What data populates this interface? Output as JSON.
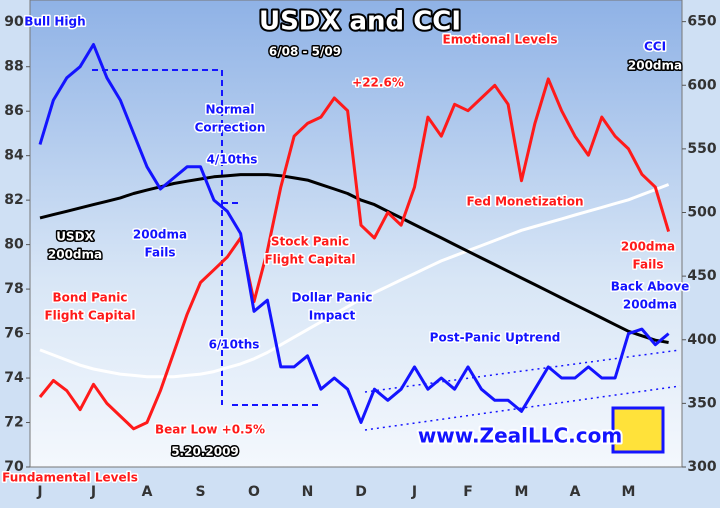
{
  "chart_data": {
    "type": "line",
    "title": "USDX and CCI",
    "subtitle": "6/08 - 5/09",
    "categories": [
      "J",
      null,
      null,
      null,
      "J",
      null,
      null,
      null,
      "A",
      null,
      null,
      null,
      "S",
      null,
      null,
      null,
      "O",
      null,
      null,
      null,
      "N",
      null,
      null,
      null,
      "D",
      null,
      null,
      null,
      "J",
      null,
      null,
      null,
      "F",
      null,
      null,
      null,
      "M",
      null,
      null,
      null,
      "A",
      null,
      null,
      null,
      "M",
      null,
      null,
      null
    ],
    "ylim": [
      70,
      91
    ],
    "yticks": [
      70,
      72,
      74,
      76,
      78,
      80,
      82,
      84,
      86,
      88,
      90
    ],
    "y2lim": [
      300,
      667
    ],
    "y2ticks": [
      300,
      350,
      400,
      450,
      500,
      550,
      600,
      650
    ],
    "series": [
      {
        "name": "USDX",
        "color": "#1414ff",
        "values": [
          84.5,
          86.5,
          87.5,
          88,
          89,
          87.5,
          86.5,
          85,
          83.5,
          82.5,
          83,
          83.5,
          83.5,
          82,
          81.5,
          80.5,
          77,
          77.5,
          74.5,
          74.5,
          75,
          73.5,
          74,
          73.5,
          72,
          73.5,
          73,
          73.5,
          74.5,
          73.5,
          74,
          73.5,
          74.5,
          73.5,
          73,
          73,
          72.5,
          73.5,
          74.5,
          74,
          74,
          74.5,
          74,
          74,
          76,
          76.2,
          75.5,
          76
        ]
      },
      {
        "name": "CCI",
        "color": "#ff1a1a",
        "axis": "y2",
        "values": [
          355,
          368,
          360,
          345,
          365,
          350,
          340,
          330,
          335,
          360,
          390,
          420,
          445,
          455,
          465,
          480,
          430,
          470,
          520,
          560,
          570,
          575,
          590,
          580,
          490,
          480,
          500,
          490,
          520,
          575,
          560,
          585,
          580,
          590,
          600,
          585,
          525,
          570,
          605,
          580,
          560,
          545,
          575,
          560,
          550,
          530,
          520,
          485
        ]
      },
      {
        "name": "USDX 200dma",
        "color": "#000000",
        "values": [
          81.2,
          81.35,
          81.5,
          81.65,
          81.8,
          81.95,
          82.1,
          82.3,
          82.45,
          82.6,
          82.75,
          82.85,
          82.95,
          83.05,
          83.1,
          83.15,
          83.15,
          83.15,
          83.1,
          83.0,
          82.9,
          82.7,
          82.5,
          82.3,
          82.0,
          81.8,
          81.5,
          81.2,
          80.9,
          80.6,
          80.3,
          80.0,
          79.7,
          79.4,
          79.1,
          78.8,
          78.5,
          78.2,
          77.9,
          77.6,
          77.3,
          77.0,
          76.7,
          76.4,
          76.1,
          75.9,
          75.7,
          75.6
        ]
      },
      {
        "name": "CCI 200dma",
        "color": "#ffffff",
        "axis": "y2",
        "values": [
          392,
          388,
          384,
          380,
          377,
          375,
          373,
          372,
          371,
          371,
          371,
          372,
          373,
          375,
          378,
          381,
          385,
          390,
          396,
          402,
          408,
          414,
          420,
          426,
          432,
          437,
          442,
          447,
          452,
          457,
          462,
          466,
          470,
          474,
          478,
          482,
          486,
          489,
          492,
          495,
          498,
          501,
          504,
          507,
          510,
          514,
          518,
          522
        ]
      }
    ],
    "annotations": [
      {
        "text": [
          "Bull High"
        ],
        "color": "#1414ff"
      },
      {
        "text": [
          "Normal",
          "Correction"
        ],
        "color": "#1414ff"
      },
      {
        "text": [
          "4/10ths"
        ],
        "color": "#1414ff"
      },
      {
        "text": [
          "200dma",
          "Fails"
        ],
        "color": "#1414ff"
      },
      {
        "text": [
          "USDX",
          "200dma"
        ],
        "color": "#ffffff"
      },
      {
        "text": [
          "Bond Panic",
          "Flight Capital"
        ],
        "color": "#ff1a1a"
      },
      {
        "text": [
          "Fundamental Levels"
        ],
        "color": "#ff1a1a"
      },
      {
        "text": [
          "Bear Low +0.5%"
        ],
        "color": "#ff1a1a"
      },
      {
        "text": [
          "5.20.2009"
        ],
        "color": "#ffffff"
      },
      {
        "text": [
          "6/10ths"
        ],
        "color": "#1414ff"
      },
      {
        "text": [
          "Dollar Panic",
          "Impact"
        ],
        "color": "#1414ff"
      },
      {
        "text": [
          "Stock Panic",
          "Flight Capital"
        ],
        "color": "#ff1a1a"
      },
      {
        "text": [
          "+22.6%"
        ],
        "color": "#ff1a1a"
      },
      {
        "text": [
          "Emotional Levels"
        ],
        "color": "#ff1a1a"
      },
      {
        "text": [
          "CCI"
        ],
        "color": "#1414ff"
      },
      {
        "text": [
          "200dma"
        ],
        "color": "#ffffff"
      },
      {
        "text": [
          "Fed Monetization"
        ],
        "color": "#ff1a1a"
      },
      {
        "text": [
          "200dma",
          "Fails"
        ],
        "color": "#ff1a1a"
      },
      {
        "text": [
          "Back Above",
          "200dma"
        ],
        "color": "#1414ff"
      },
      {
        "text": [
          "Post-Panic Uptrend"
        ],
        "color": "#1414ff"
      },
      {
        "text": [
          "www.ZealLLC.com"
        ],
        "color": "#1414ff"
      }
    ]
  }
}
